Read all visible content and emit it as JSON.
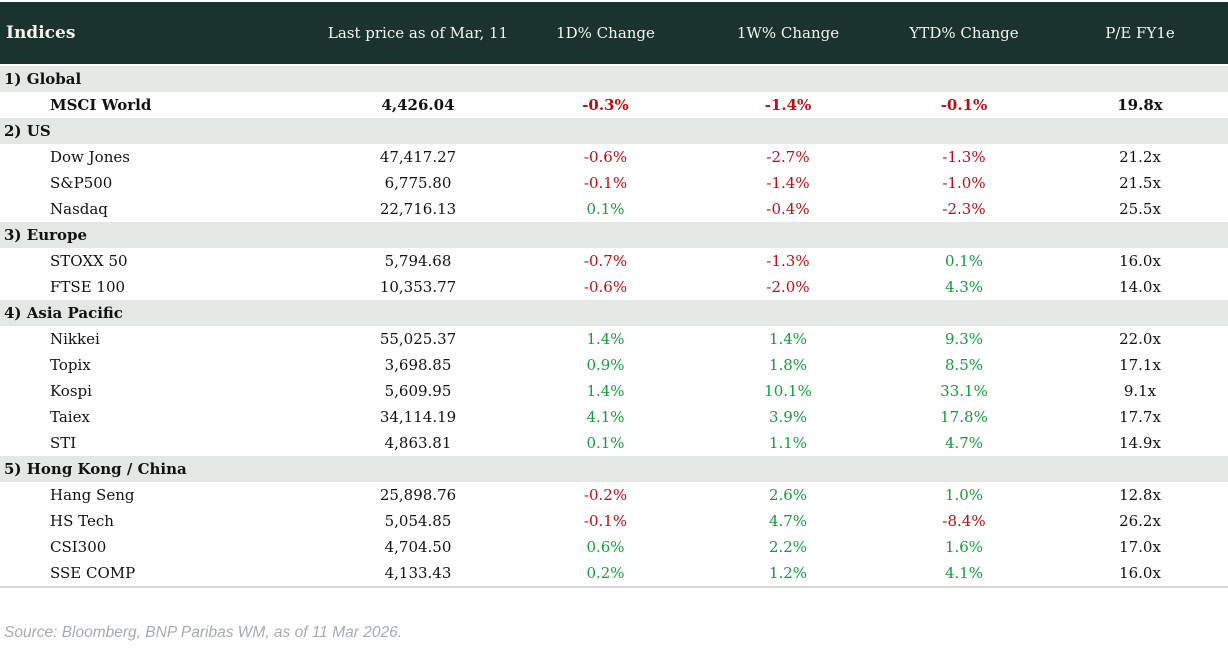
{
  "header": {
    "columns": [
      "Indices",
      "Last price as of Mar, 11",
      "1D% Change",
      "1W% Change",
      "YTD% Change",
      "P/E FY1e"
    ]
  },
  "sections": [
    {
      "label": "1) Global",
      "rows": [
        {
          "name": "MSCI World",
          "last_price": "4,426.04",
          "d1": "-0.3%",
          "d1_dir": "neg",
          "w1": "-1.4%",
          "w1_dir": "neg",
          "ytd": "-0.1%",
          "ytd_dir": "neg",
          "pe": "19.8x",
          "bold": true
        }
      ]
    },
    {
      "label": "2) US",
      "rows": [
        {
          "name": "Dow Jones",
          "last_price": "47,417.27",
          "d1": "-0.6%",
          "d1_dir": "neg",
          "w1": "-2.7%",
          "w1_dir": "neg",
          "ytd": "-1.3%",
          "ytd_dir": "neg",
          "pe": "21.2x",
          "bold": false
        },
        {
          "name": "S&P500",
          "last_price": "6,775.80",
          "d1": "-0.1%",
          "d1_dir": "neg",
          "w1": "-1.4%",
          "w1_dir": "neg",
          "ytd": "-1.0%",
          "ytd_dir": "neg",
          "pe": "21.5x",
          "bold": false
        },
        {
          "name": "Nasdaq",
          "last_price": "22,716.13",
          "d1": "0.1%",
          "d1_dir": "pos",
          "w1": "-0.4%",
          "w1_dir": "neg",
          "ytd": "-2.3%",
          "ytd_dir": "neg",
          "pe": "25.5x",
          "bold": false
        }
      ]
    },
    {
      "label": "3) Europe",
      "rows": [
        {
          "name": "STOXX 50",
          "last_price": "5,794.68",
          "d1": "-0.7%",
          "d1_dir": "neg",
          "w1": "-1.3%",
          "w1_dir": "neg",
          "ytd": "0.1%",
          "ytd_dir": "pos",
          "pe": "16.0x",
          "bold": false
        },
        {
          "name": "FTSE 100",
          "last_price": "10,353.77",
          "d1": "-0.6%",
          "d1_dir": "neg",
          "w1": "-2.0%",
          "w1_dir": "neg",
          "ytd": "4.3%",
          "ytd_dir": "pos",
          "pe": "14.0x",
          "bold": false
        }
      ]
    },
    {
      "label": "4) Asia Pacific",
      "rows": [
        {
          "name": "Nikkei",
          "last_price": "55,025.37",
          "d1": "1.4%",
          "d1_dir": "pos",
          "w1": "1.4%",
          "w1_dir": "pos",
          "ytd": "9.3%",
          "ytd_dir": "pos",
          "pe": "22.0x",
          "bold": false
        },
        {
          "name": "Topix",
          "last_price": "3,698.85",
          "d1": "0.9%",
          "d1_dir": "pos",
          "w1": "1.8%",
          "w1_dir": "pos",
          "ytd": "8.5%",
          "ytd_dir": "pos",
          "pe": "17.1x",
          "bold": false
        },
        {
          "name": "Kospi",
          "last_price": "5,609.95",
          "d1": "1.4%",
          "d1_dir": "pos",
          "w1": "10.1%",
          "w1_dir": "pos",
          "ytd": "33.1%",
          "ytd_dir": "pos",
          "pe": "9.1x",
          "bold": false
        },
        {
          "name": "Taiex",
          "last_price": "34,114.19",
          "d1": "4.1%",
          "d1_dir": "pos",
          "w1": "3.9%",
          "w1_dir": "pos",
          "ytd": "17.8%",
          "ytd_dir": "pos",
          "pe": "17.7x",
          "bold": false
        },
        {
          "name": "STI",
          "last_price": "4,863.81",
          "d1": "0.1%",
          "d1_dir": "pos",
          "w1": "1.1%",
          "w1_dir": "pos",
          "ytd": "4.7%",
          "ytd_dir": "pos",
          "pe": "14.9x",
          "bold": false
        }
      ]
    },
    {
      "label": "5) Hong Kong / China",
      "rows": [
        {
          "name": "Hang Seng",
          "last_price": "25,898.76",
          "d1": "-0.2%",
          "d1_dir": "neg",
          "w1": "2.6%",
          "w1_dir": "pos",
          "ytd": "1.0%",
          "ytd_dir": "pos",
          "pe": "12.8x",
          "bold": false
        },
        {
          "name": "HS Tech",
          "last_price": "5,054.85",
          "d1": "-0.1%",
          "d1_dir": "neg",
          "w1": "4.7%",
          "w1_dir": "pos",
          "ytd": "-8.4%",
          "ytd_dir": "neg",
          "pe": "26.2x",
          "bold": false
        },
        {
          "name": "CSI300",
          "last_price": "4,704.50",
          "d1": "0.6%",
          "d1_dir": "pos",
          "w1": "2.2%",
          "w1_dir": "pos",
          "ytd": "1.6%",
          "ytd_dir": "pos",
          "pe": "17.0x",
          "bold": false
        },
        {
          "name": "SSE COMP",
          "last_price": "4,133.43",
          "d1": "0.2%",
          "d1_dir": "pos",
          "w1": "1.2%",
          "w1_dir": "pos",
          "ytd": "4.1%",
          "ytd_dir": "pos",
          "pe": "16.0x",
          "bold": false
        }
      ]
    }
  ],
  "footer": {
    "source_text": "Source: Bloomberg, BNP Paribas WM, as of 11 Mar 2026."
  },
  "colors": {
    "header_bg": "#1b332e",
    "header_text": "#f7f4ec",
    "section_bg": "#e4e8e5",
    "positive": "#0f9e38",
    "negative": "#bb0e14",
    "source_text": "#a6abb0"
  }
}
